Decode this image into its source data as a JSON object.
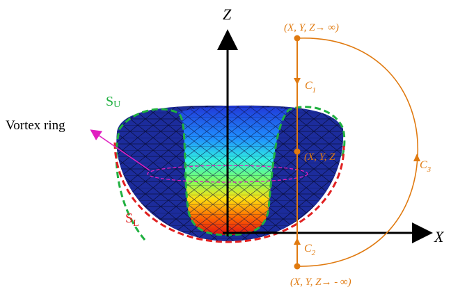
{
  "axes": {
    "z": "Z",
    "x": "X"
  },
  "points": {
    "top": "(X, Y, Z→ ∞)",
    "middle": "(X, Y, Z",
    "bottom": "(X, Y, Z→ - ∞)"
  },
  "contours": {
    "c1": {
      "main": "C",
      "sub": "1"
    },
    "c2": {
      "main": "C",
      "sub": "2"
    },
    "c3": {
      "main": "C",
      "sub": "3"
    }
  },
  "surfaces": {
    "upper": {
      "main": "S",
      "sub": "U"
    },
    "lower": {
      "main": "S",
      "sub": "L"
    }
  },
  "annotation": "Vortex ring"
}
